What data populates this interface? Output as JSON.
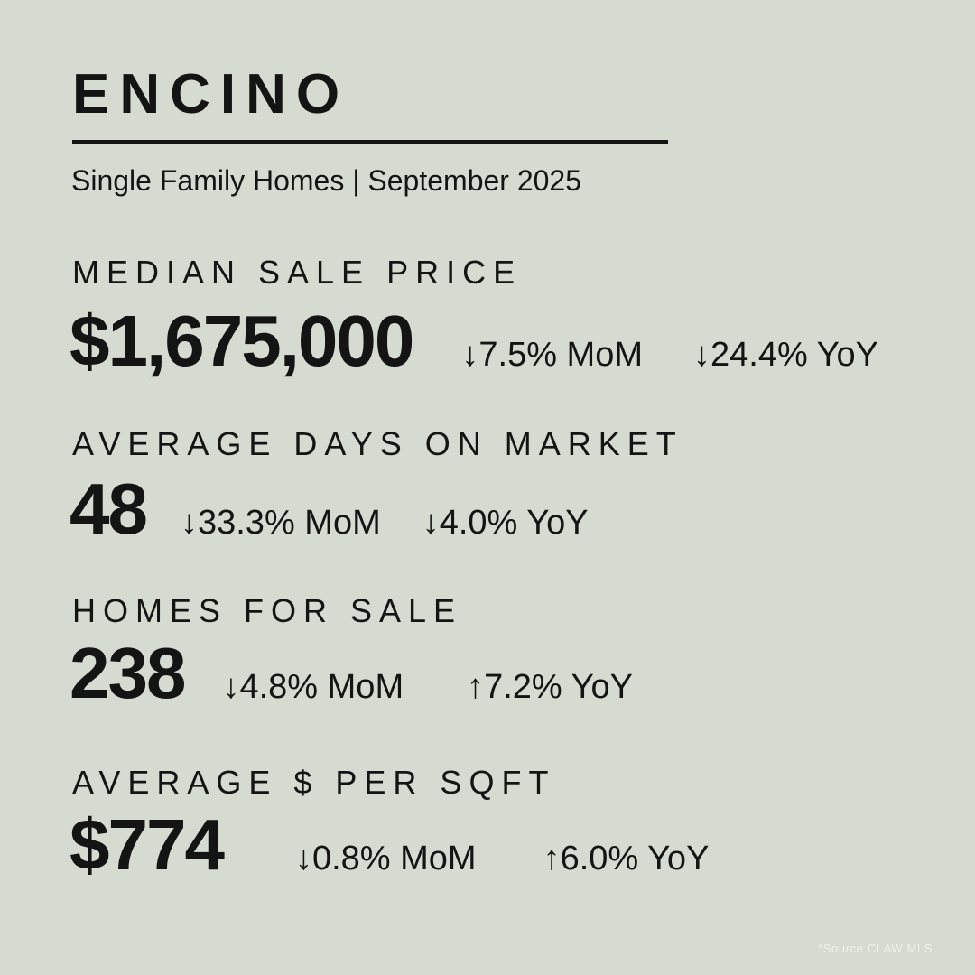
{
  "theme": {
    "background": "#d6dbd2",
    "text": "#141414",
    "footer_text": "#eff2ed"
  },
  "header": {
    "title": "ENCINO",
    "subtitle": "Single Family Homes | September 2025"
  },
  "stats": [
    {
      "label": "MEDIAN SALE PRICE",
      "value": "$1,675,000",
      "mom_arrow": "↓",
      "mom_text": "7.5% MoM",
      "mom_direction": "down",
      "yoy_arrow": "↓",
      "yoy_text": "24.4% YoY",
      "yoy_direction": "down"
    },
    {
      "label": "AVERAGE DAYS ON MARKET",
      "value": "48",
      "mom_arrow": "↓",
      "mom_text": "33.3% MoM",
      "mom_direction": "down",
      "yoy_arrow": "↓",
      "yoy_text": "4.0% YoY",
      "yoy_direction": "down"
    },
    {
      "label": "HOMES FOR SALE",
      "value": "238",
      "mom_arrow": "↓",
      "mom_text": "4.8% MoM",
      "mom_direction": "down",
      "yoy_arrow": "↑",
      "yoy_text": "7.2% YoY",
      "yoy_direction": "up"
    },
    {
      "label": "AVERAGE $ PER SQFT",
      "value": "$774",
      "mom_arrow": "↓",
      "mom_text": "0.8% MoM",
      "mom_direction": "down",
      "yoy_arrow": "↑",
      "yoy_text": "6.0% YoY",
      "yoy_direction": "up"
    }
  ],
  "footer": {
    "source": "*Source CLAW MLS"
  }
}
